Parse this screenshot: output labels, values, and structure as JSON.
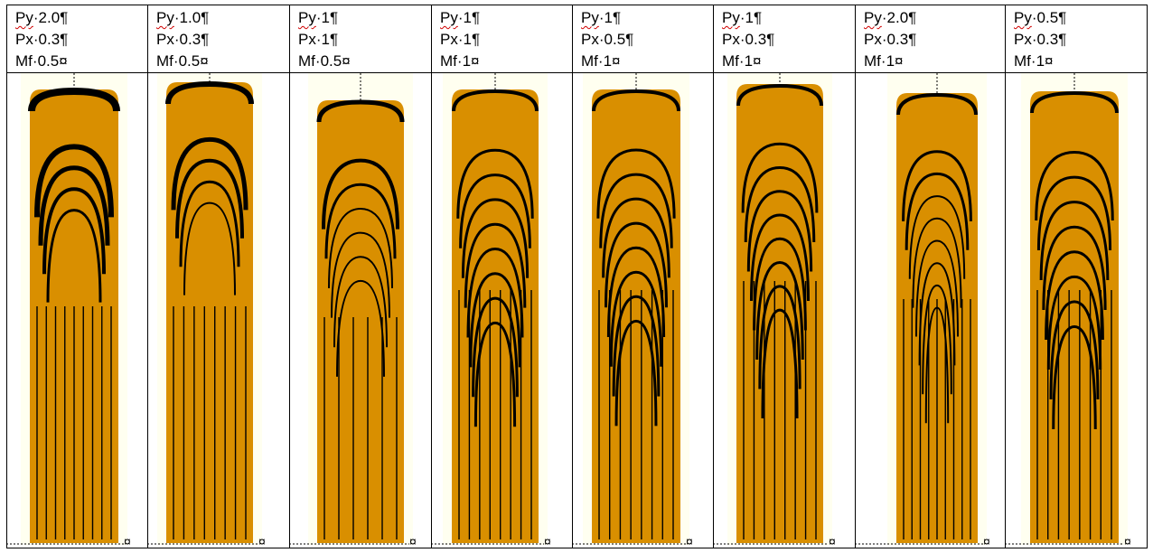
{
  "colors": {
    "fill": "#d98f00",
    "page": "#fffff0",
    "ink": "#000000",
    "spell": "#d00000"
  },
  "end_of_cell_mark": "¤",
  "panels": [
    {
      "py_key": "Py",
      "py": "2.0",
      "px_key": "Px",
      "px": "0.3",
      "mf_key": "Mf",
      "mf": "0.5"
    },
    {
      "py_key": "Py",
      "py": "1.0",
      "px_key": "Px",
      "px": "0.3",
      "mf_key": "Mf",
      "mf": "0.5"
    },
    {
      "py_key": "Py",
      "py": "1",
      "px_key": "Px",
      "px": "1",
      "mf_key": "Mf",
      "mf": "0.5"
    },
    {
      "py_key": "Py",
      "py": "1",
      "px_key": "Px",
      "px": "1",
      "mf_key": "Mf",
      "mf": "1"
    },
    {
      "py_key": "Py",
      "py": "1",
      "px_key": "Px",
      "px": "0.5",
      "mf_key": "Mf",
      "mf": "1"
    },
    {
      "py_key": "Py",
      "py": "1",
      "px_key": "Px",
      "px": "0.3",
      "mf_key": "Mf",
      "mf": "1"
    },
    {
      "py_key": "Py",
      "py": "2.0",
      "px_key": "Px",
      "px": "0.3",
      "mf_key": "Mf",
      "mf": "1"
    },
    {
      "py_key": "Py",
      "py": "0.5",
      "px_key": "Px",
      "px": "0.3",
      "mf_key": "Mf",
      "mf": "1"
    }
  ]
}
